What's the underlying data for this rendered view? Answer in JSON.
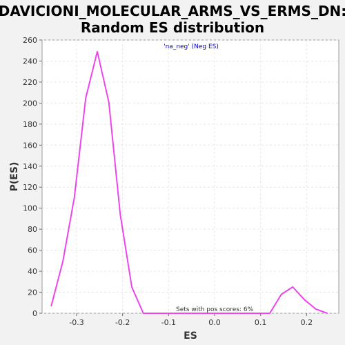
{
  "chart_data": {
    "type": "line",
    "title_line1": "DAVICIONI_MOLECULAR_ARMS_VS_ERMS_DN:",
    "title_line2": "Random ES distribution",
    "xlabel": "ES",
    "ylabel": "P(ES)",
    "xlim": [
      -0.375,
      0.27
    ],
    "ylim": [
      0,
      260
    ],
    "xticks": [
      -0.3,
      -0.2,
      -0.1,
      0.0,
      0.1,
      0.2
    ],
    "xtick_labels": [
      "-0.3",
      "-0.2",
      "-0.1",
      "0.0",
      "0.1",
      "0.2"
    ],
    "yticks": [
      0,
      20,
      40,
      60,
      80,
      100,
      120,
      140,
      160,
      180,
      200,
      220,
      240,
      260
    ],
    "ytick_labels": [
      "0",
      "20",
      "40",
      "60",
      "80",
      "100",
      "120",
      "140",
      "160",
      "180",
      "200",
      "220",
      "240",
      "260"
    ],
    "grid": true,
    "annotation_top": "'na_neg' (Neg ES)",
    "annotation_bottom": "Sets with pos scores: 6%",
    "annotation_top_color": "#0000cc",
    "annotation_bottom_color": "#333333",
    "series": [
      {
        "color": "#ee44ee",
        "x": [
          -0.355,
          -0.33,
          -0.305,
          -0.28,
          -0.255,
          -0.23,
          -0.205,
          -0.18,
          -0.155,
          -0.13,
          -0.105,
          -0.08,
          -0.055,
          -0.03,
          -0.005,
          0.02,
          0.045,
          0.07,
          0.095,
          0.12,
          0.145,
          0.17,
          0.195,
          0.22,
          0.245
        ],
        "y": [
          7,
          49,
          110,
          205,
          249,
          201,
          94,
          25,
          0,
          0,
          0,
          0,
          0,
          0,
          0,
          0,
          0,
          0,
          0,
          0,
          18,
          25,
          13,
          4,
          0
        ]
      }
    ]
  }
}
